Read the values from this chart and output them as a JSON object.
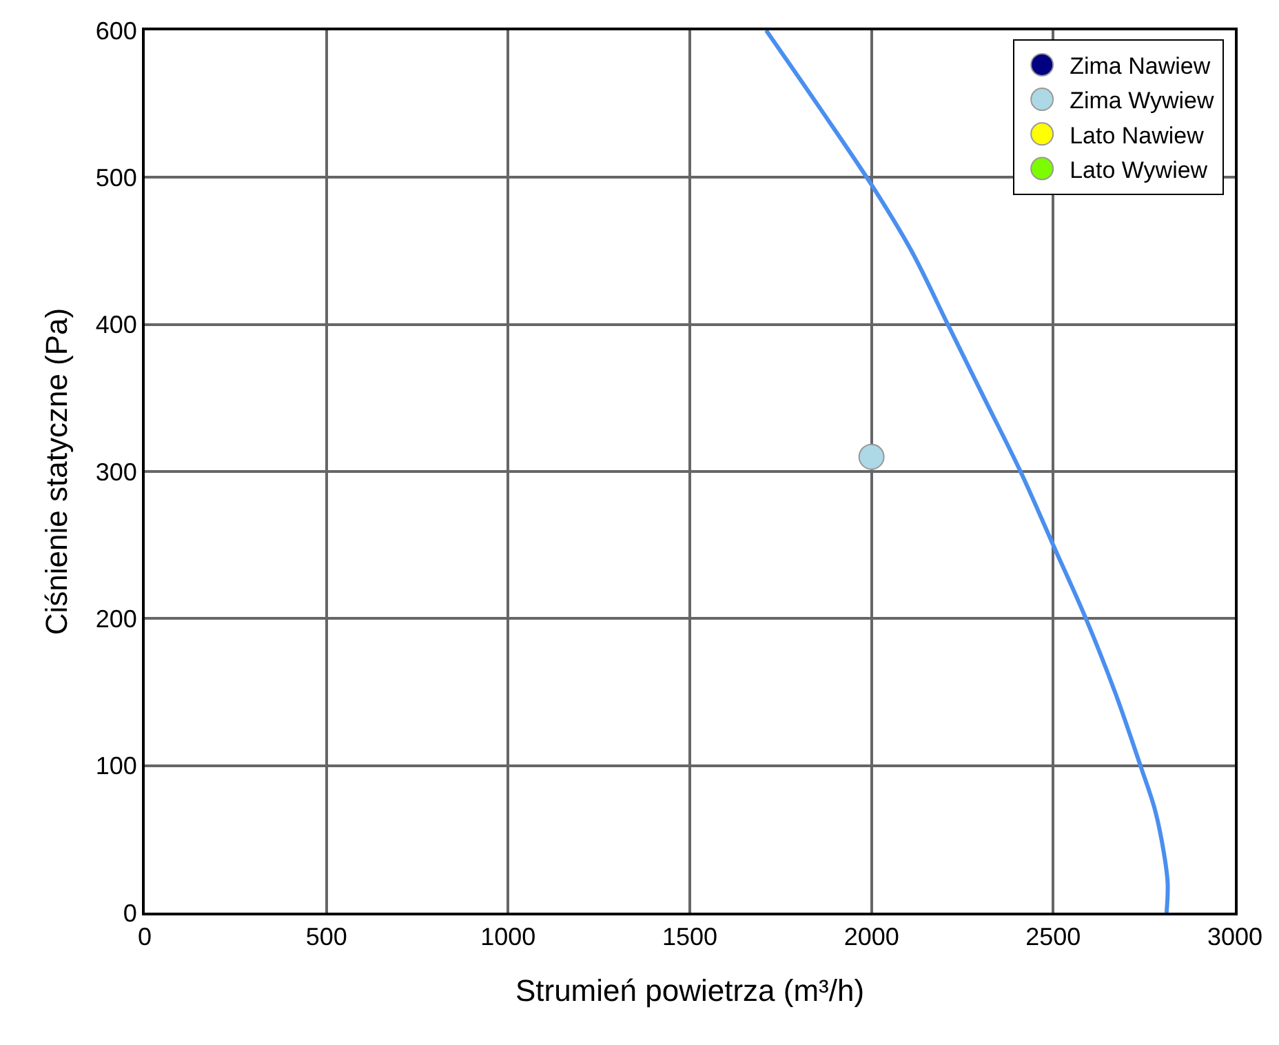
{
  "chart_data": {
    "type": "scatter",
    "xlabel": "Strumień powietrza (m³/h)",
    "ylabel": "Ciśnienie statyczne (Pa)",
    "xlim": [
      0,
      3000
    ],
    "ylim": [
      0,
      600
    ],
    "xticks": [
      0,
      500,
      1000,
      1500,
      2000,
      2500,
      3000
    ],
    "yticks": [
      0,
      100,
      200,
      300,
      400,
      500,
      600
    ],
    "grid": true,
    "legend": "top right",
    "marker": "circle",
    "series": [
      {
        "type": "line",
        "marker": "none",
        "color": "#4a8ff0",
        "x": [
          1710,
          1850,
          2000,
          2110,
          2210,
          2310,
          2410,
          2500,
          2590,
          2670,
          2740,
          2780,
          2805,
          2815,
          2812
        ],
        "values": [
          600,
          550,
          495,
          450,
          400,
          350,
          300,
          250,
          200,
          150,
          100,
          70,
          40,
          20,
          0
        ]
      },
      {
        "name": "Zima Nawiew",
        "color": "#000080"
      },
      {
        "name": "Zima Wywiew",
        "color": "#add8e6",
        "x": [
          2000
        ],
        "values": [
          310
        ]
      },
      {
        "name": "Lato Nawiew",
        "color": "#ffff00"
      },
      {
        "name": "Lato Wywiew",
        "color": "#7cfc00"
      }
    ]
  }
}
